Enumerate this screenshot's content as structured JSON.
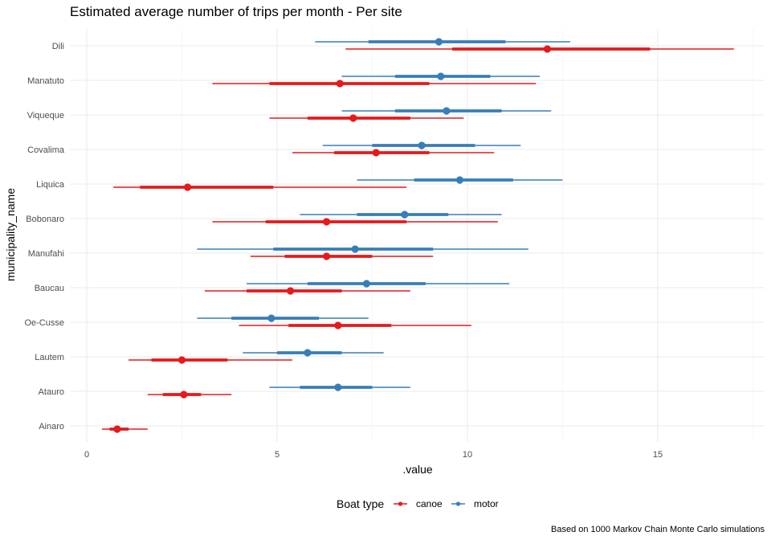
{
  "chart_data": {
    "type": "interval",
    "title": "Estimated average number of trips per month - Per site",
    "xlabel": ".value",
    "ylabel": "municipality_name",
    "xlim": [
      0,
      17.8
    ],
    "x_ticks": [
      0,
      5,
      10,
      15
    ],
    "grid": true,
    "categories": [
      "Dili",
      "Manatuto",
      "Viqueque",
      "Covalima",
      "Liquica",
      "Bobonaro",
      "Manufahi",
      "Baucau",
      "Oe-Cusse",
      "Lautem",
      "Atauro",
      "Ainaro"
    ],
    "legend": {
      "title": "Boat type",
      "position": "bottom",
      "entries": [
        {
          "key": "canoe",
          "label": "canoe",
          "color": "#e41a1c"
        },
        {
          "key": "motor",
          "label": "motor",
          "color": "#377eb8"
        }
      ]
    },
    "series": [
      {
        "name": "canoe",
        "color": "#e41a1c",
        "points": [
          {
            "category": "Dili",
            "value": 12.1,
            "inner": [
              9.6,
              14.8
            ],
            "outer": [
              6.8,
              17.0
            ]
          },
          {
            "category": "Manatuto",
            "value": 6.65,
            "inner": [
              4.8,
              9.0
            ],
            "outer": [
              3.3,
              11.8
            ]
          },
          {
            "category": "Viqueque",
            "value": 7.0,
            "inner": [
              5.8,
              8.5
            ],
            "outer": [
              4.8,
              9.9
            ]
          },
          {
            "category": "Covalima",
            "value": 7.6,
            "inner": [
              6.5,
              9.0
            ],
            "outer": [
              5.4,
              10.7
            ]
          },
          {
            "category": "Liquica",
            "value": 2.65,
            "inner": [
              1.4,
              4.9
            ],
            "outer": [
              0.7,
              8.4
            ]
          },
          {
            "category": "Bobonaro",
            "value": 6.3,
            "inner": [
              4.7,
              8.4
            ],
            "outer": [
              3.3,
              10.8
            ]
          },
          {
            "category": "Manufahi",
            "value": 6.3,
            "inner": [
              5.2,
              7.5
            ],
            "outer": [
              4.3,
              9.1
            ]
          },
          {
            "category": "Baucau",
            "value": 5.35,
            "inner": [
              4.2,
              6.7
            ],
            "outer": [
              3.1,
              8.5
            ]
          },
          {
            "category": "Oe-Cusse",
            "value": 6.6,
            "inner": [
              5.3,
              8.0
            ],
            "outer": [
              4.0,
              10.1
            ]
          },
          {
            "category": "Lautem",
            "value": 2.5,
            "inner": [
              1.7,
              3.7
            ],
            "outer": [
              1.1,
              5.4
            ]
          },
          {
            "category": "Atauro",
            "value": 2.55,
            "inner": [
              2.0,
              3.0
            ],
            "outer": [
              1.6,
              3.8
            ]
          },
          {
            "category": "Ainaro",
            "value": 0.8,
            "inner": [
              0.6,
              1.1
            ],
            "outer": [
              0.4,
              1.6
            ]
          }
        ]
      },
      {
        "name": "motor",
        "color": "#377eb8",
        "points": [
          {
            "category": "Dili",
            "value": 9.25,
            "inner": [
              7.4,
              11.0
            ],
            "outer": [
              6.0,
              12.7
            ]
          },
          {
            "category": "Manatuto",
            "value": 9.3,
            "inner": [
              8.1,
              10.6
            ],
            "outer": [
              6.7,
              11.9
            ]
          },
          {
            "category": "Viqueque",
            "value": 9.45,
            "inner": [
              8.1,
              10.9
            ],
            "outer": [
              6.7,
              12.2
            ]
          },
          {
            "category": "Covalima",
            "value": 8.8,
            "inner": [
              7.5,
              10.2
            ],
            "outer": [
              6.2,
              11.4
            ]
          },
          {
            "category": "Liquica",
            "value": 9.8,
            "inner": [
              8.6,
              11.2
            ],
            "outer": [
              7.1,
              12.5
            ]
          },
          {
            "category": "Bobonaro",
            "value": 8.35,
            "inner": [
              7.1,
              9.5
            ],
            "outer": [
              5.6,
              10.9
            ]
          },
          {
            "category": "Manufahi",
            "value": 7.05,
            "inner": [
              4.9,
              9.1
            ],
            "outer": [
              2.9,
              11.6
            ]
          },
          {
            "category": "Baucau",
            "value": 7.35,
            "inner": [
              5.8,
              8.9
            ],
            "outer": [
              4.2,
              11.1
            ]
          },
          {
            "category": "Oe-Cusse",
            "value": 4.85,
            "inner": [
              3.8,
              6.1
            ],
            "outer": [
              2.9,
              7.4
            ]
          },
          {
            "category": "Lautem",
            "value": 5.8,
            "inner": [
              5.0,
              6.7
            ],
            "outer": [
              4.1,
              7.8
            ]
          },
          {
            "category": "Atauro",
            "value": 6.6,
            "inner": [
              5.6,
              7.5
            ],
            "outer": [
              4.8,
              8.5
            ]
          }
        ]
      }
    ],
    "caption": "Based on 1000 Markov Chain Monte Carlo simulations"
  }
}
